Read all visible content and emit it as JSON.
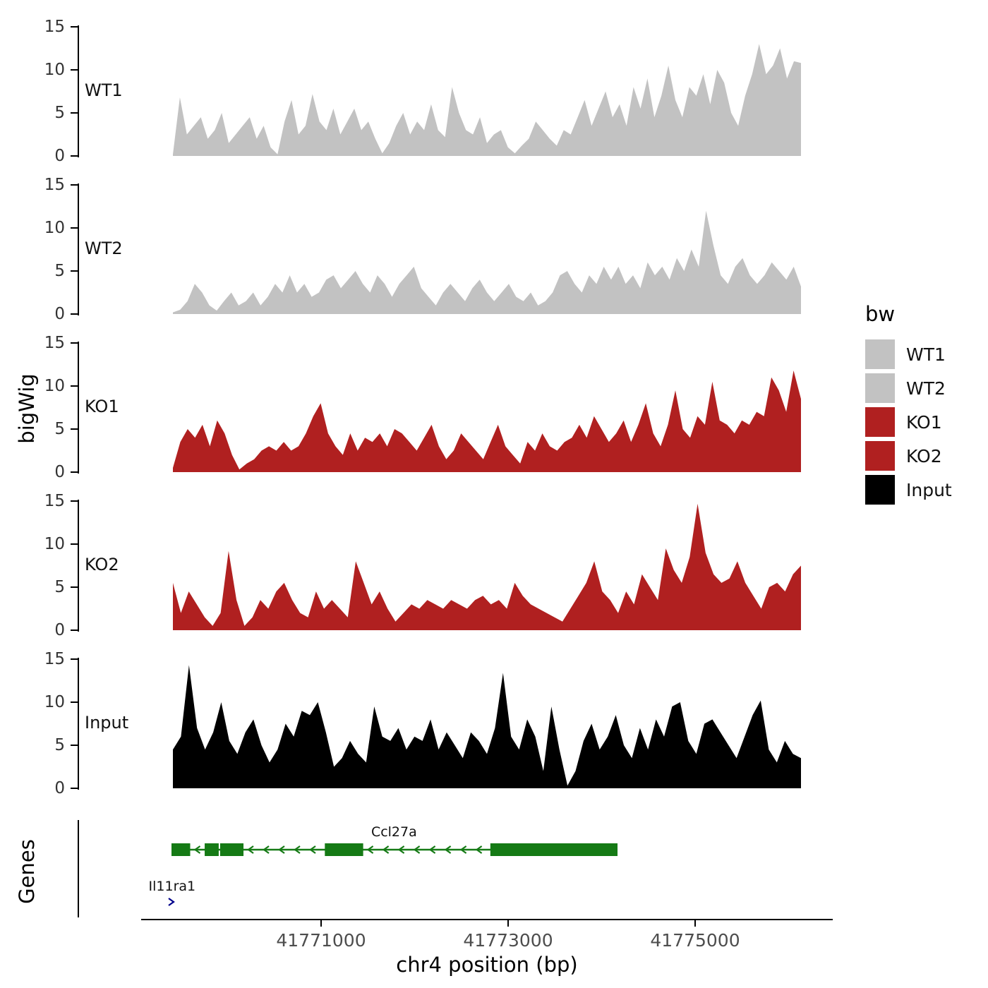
{
  "labels": {
    "genes_panel": "Genes"
  },
  "legend": {
    "title": "bw",
    "items": [
      {
        "label": "WT1",
        "color": "#c2c2c2"
      },
      {
        "label": "WT2",
        "color": "#c2c2c2"
      },
      {
        "label": "KO1",
        "color": "#b02020"
      },
      {
        "label": "KO2",
        "color": "#b02020"
      },
      {
        "label": "Input",
        "color": "#000000"
      }
    ]
  },
  "chart_data": {
    "type": "area",
    "title": "",
    "xlabel": "chr4 position (bp)",
    "ylabel": "bigWig",
    "ylim": [
      0,
      15
    ],
    "y_ticks": [
      0,
      5,
      10,
      15
    ],
    "x_range_bp": [
      41769400,
      41776150
    ],
    "x_ticks": [
      {
        "bp": 41771000,
        "label": "41771000"
      },
      {
        "bp": 41773000,
        "label": "41773000"
      },
      {
        "bp": 41775000,
        "label": "41775000"
      }
    ],
    "grid": false,
    "legend_position": "right",
    "tracks": [
      {
        "name": "WT1",
        "color": "#c2c2c2",
        "values": [
          0.2,
          6.8,
          2.5,
          3.5,
          4.5,
          2,
          3,
          5,
          1.5,
          2.5,
          3.5,
          4.5,
          2,
          3.5,
          1,
          0.2,
          4,
          6.5,
          2.5,
          3.5,
          7.2,
          4,
          3,
          5.5,
          2.5,
          4,
          5.5,
          3,
          4,
          2,
          0.3,
          1.5,
          3.5,
          5,
          2.5,
          4,
          3,
          6,
          3,
          2.2,
          8,
          5,
          3,
          2.5,
          4.5,
          1.5,
          2.5,
          3,
          1,
          0.3,
          1.2,
          2,
          4,
          3,
          2,
          1.2,
          3,
          2.5,
          4.5,
          6.5,
          3.5,
          5.5,
          7.5,
          4.5,
          6,
          3.5,
          8,
          5.5,
          9,
          4.5,
          7,
          10.5,
          6.5,
          4.5,
          8,
          7,
          9.5,
          6,
          10,
          8.5,
          5,
          3.5,
          7,
          9.5,
          13,
          9.5,
          10.5,
          12.5,
          9,
          11,
          10.8
        ]
      },
      {
        "name": "WT2",
        "color": "#c2c2c2",
        "values": [
          0.2,
          0.5,
          1.5,
          3.5,
          2.5,
          1,
          0.4,
          1.5,
          2.5,
          1,
          1.5,
          2.5,
          1,
          2,
          3.5,
          2.5,
          4.5,
          2.5,
          3.5,
          2,
          2.5,
          4,
          4.5,
          3,
          4,
          5,
          3.5,
          2.5,
          4.5,
          3.5,
          2,
          3.5,
          4.5,
          5.5,
          3,
          2,
          1,
          2.5,
          3.5,
          2.5,
          1.5,
          3,
          4,
          2.5,
          1.5,
          2.5,
          3.5,
          2,
          1.5,
          2.5,
          1,
          1.5,
          2.5,
          4.5,
          5,
          3.5,
          2.5,
          4.5,
          3.5,
          5.5,
          4,
          5.5,
          3.5,
          4.5,
          3,
          6,
          4.5,
          5.5,
          4,
          6.5,
          5,
          7.5,
          5.5,
          12,
          8,
          4.5,
          3.5,
          5.5,
          6.5,
          4.5,
          3.5,
          4.5,
          6,
          5,
          4,
          5.5,
          3.2
        ]
      },
      {
        "name": "KO1",
        "color": "#b02020",
        "values": [
          0.5,
          3.5,
          5,
          4,
          5.5,
          3,
          6,
          4.5,
          2,
          0.3,
          1,
          1.5,
          2.5,
          3,
          2.5,
          3.5,
          2.5,
          3,
          4.5,
          6.5,
          8,
          4.5,
          3,
          2,
          4.5,
          2.5,
          4,
          3.5,
          4.5,
          3,
          5,
          4.5,
          3.5,
          2.5,
          4,
          5.5,
          3,
          1.5,
          2.5,
          4.5,
          3.5,
          2.5,
          1.5,
          3.5,
          5.5,
          3,
          2,
          1,
          3.5,
          2.5,
          4.5,
          3,
          2.5,
          3.5,
          4,
          5.5,
          4,
          6.5,
          5,
          3.5,
          4.5,
          6,
          3.5,
          5.5,
          8,
          4.5,
          3,
          5.5,
          9.5,
          5,
          4,
          6.5,
          5.5,
          10.5,
          6,
          5.5,
          4.5,
          6,
          5.5,
          7,
          6.5,
          11,
          9.5,
          7,
          11.8,
          8.5
        ]
      },
      {
        "name": "KO2",
        "color": "#b02020",
        "values": [
          5.5,
          2,
          4.5,
          3,
          1.5,
          0.5,
          2,
          9.2,
          3.5,
          0.5,
          1.5,
          3.5,
          2.5,
          4.5,
          5.5,
          3.5,
          2,
          1.5,
          4.5,
          2.5,
          3.5,
          2.5,
          1.5,
          8,
          5.5,
          3,
          4.5,
          2.5,
          1,
          2,
          3,
          2.5,
          3.5,
          3,
          2.5,
          3.5,
          3,
          2.5,
          3.5,
          4,
          3,
          3.5,
          2.5,
          5.5,
          4,
          3,
          2.5,
          2,
          1.5,
          1,
          2.5,
          4,
          5.5,
          8,
          4.5,
          3.5,
          2,
          4.5,
          3,
          6.5,
          5,
          3.5,
          9.5,
          7,
          5.5,
          8.5,
          14.7,
          9,
          6.5,
          5.5,
          6,
          8,
          5.5,
          4,
          2.5,
          5,
          5.5,
          4.5,
          6.5,
          7.5
        ]
      },
      {
        "name": "Input",
        "color": "#000000",
        "values": [
          4.5,
          6,
          14.3,
          7,
          4.5,
          6.5,
          10,
          5.5,
          4,
          6.5,
          8,
          5,
          3,
          4.5,
          7.5,
          6,
          9,
          8.5,
          10,
          6.5,
          2.5,
          3.5,
          5.5,
          4,
          3,
          9.5,
          6,
          5.5,
          7,
          4.5,
          6,
          5.5,
          8,
          4.5,
          6.5,
          5,
          3.5,
          6.5,
          5.5,
          4,
          7,
          13.4,
          6,
          4.5,
          8,
          6,
          2,
          9.5,
          4.5,
          0.3,
          2,
          5.5,
          7.5,
          4.5,
          6,
          8.5,
          5,
          3.5,
          7,
          4.5,
          8,
          6,
          9.5,
          10,
          5.5,
          4,
          7.5,
          8,
          6.5,
          5,
          3.5,
          6,
          8.5,
          10.2,
          4.5,
          3,
          5.5,
          4,
          3.5
        ]
      }
    ],
    "genes": [
      {
        "name": "Ccl27a",
        "strand": "-",
        "color": "#157a15",
        "row": 0,
        "start_bp": 41769400,
        "end_bp": 41774170,
        "exons_bp": [
          [
            41769400,
            41769600
          ],
          [
            41769755,
            41769905
          ],
          [
            41769920,
            41770170
          ],
          [
            41771040,
            41771450
          ],
          [
            41772810,
            41774170
          ]
        ],
        "label_bp": 41771780,
        "label_anchor": "middle"
      },
      {
        "name": "Il11ra1",
        "strand": "+",
        "color": "#00008b",
        "row": 1,
        "start_bp": 41769400,
        "end_bp": 41769460,
        "exons_bp": [],
        "label_bp": 41769155,
        "label_anchor": "start"
      }
    ]
  }
}
